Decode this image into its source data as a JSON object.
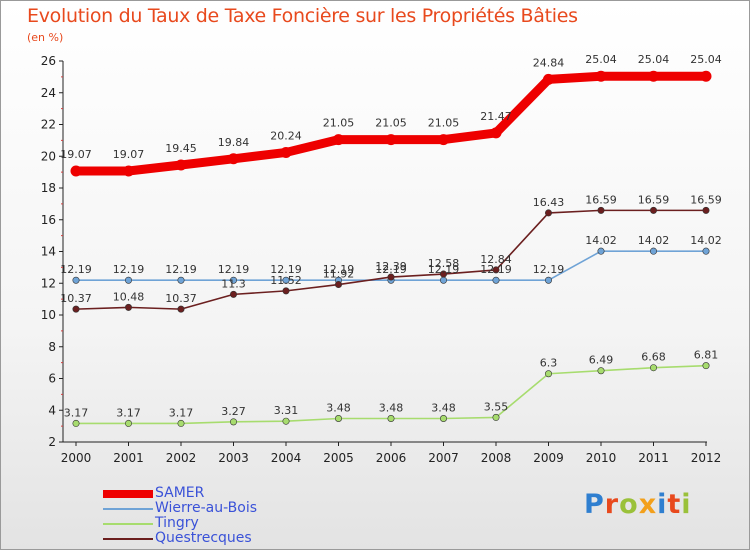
{
  "title": "Evolution du Taux de Taxe Foncière sur les Propriétés Bâties",
  "unit": "(en %)",
  "brand": {
    "letters": [
      "P",
      "r",
      "o",
      "x",
      "i",
      "t",
      "i"
    ],
    "colors": [
      "#2f7fd0",
      "#e8491d",
      "#9ac13a",
      "#f3a01b",
      "#2f7fd0",
      "#e8491d",
      "#9ac13a"
    ]
  },
  "chart_data": {
    "type": "line",
    "x": [
      "2000",
      "2001",
      "2002",
      "2003",
      "2004",
      "2005",
      "2006",
      "2007",
      "2008",
      "2009",
      "2010",
      "2011",
      "2012"
    ],
    "ylim": [
      2,
      26
    ],
    "yticks": [
      "2",
      "4",
      "6",
      "8",
      "10",
      "12",
      "14",
      "16",
      "18",
      "20",
      "22",
      "24",
      "26"
    ],
    "grid": false,
    "legend_position": "bottom-left",
    "series": [
      {
        "name": "SAMER",
        "color": "#ee0000",
        "values": [
          19.07,
          19.07,
          19.45,
          19.84,
          20.24,
          21.05,
          21.05,
          21.05,
          21.47,
          24.84,
          25.04,
          25.04,
          25.04
        ],
        "labels": [
          "19.07",
          "19.07",
          "19.45",
          "19.84",
          "20.24",
          "21.05",
          "21.05",
          "21.05",
          "21.47",
          "24.84",
          "25.04",
          "25.04",
          "25.04"
        ]
      },
      {
        "name": "Wierre-au-Bois",
        "color": "#6fa3d6",
        "values": [
          12.19,
          12.19,
          12.19,
          12.19,
          12.19,
          12.19,
          12.19,
          12.19,
          12.19,
          12.19,
          14.02,
          14.02,
          14.02
        ],
        "labels": [
          "12.19",
          "12.19",
          "12.19",
          "12.19",
          "12.19",
          "12.19",
          "12.19",
          "12.19",
          "12.19",
          "12.19",
          "14.02",
          "14.02",
          "14.02"
        ]
      },
      {
        "name": "Tingry",
        "color": "#a7dc6e",
        "values": [
          3.17,
          3.17,
          3.17,
          3.27,
          3.31,
          3.48,
          3.48,
          3.48,
          3.55,
          6.3,
          6.49,
          6.68,
          6.81
        ],
        "labels": [
          "3.17",
          "3.17",
          "3.17",
          "3.27",
          "3.31",
          "3.48",
          "3.48",
          "3.48",
          "3.55",
          "6.3",
          "6.49",
          "6.68",
          "6.81"
        ]
      },
      {
        "name": "Questrecques",
        "color": "#6b1f1f",
        "values": [
          10.37,
          10.48,
          10.37,
          11.3,
          11.52,
          11.92,
          12.39,
          12.58,
          12.84,
          16.43,
          16.59,
          16.59,
          16.59
        ],
        "labels": [
          "10.37",
          "10.48",
          "10.37",
          "11.3",
          "11.52",
          "11.92",
          "12.39",
          "12.58",
          "12.84",
          "16.43",
          "16.59",
          "16.59",
          "16.59"
        ]
      }
    ]
  }
}
